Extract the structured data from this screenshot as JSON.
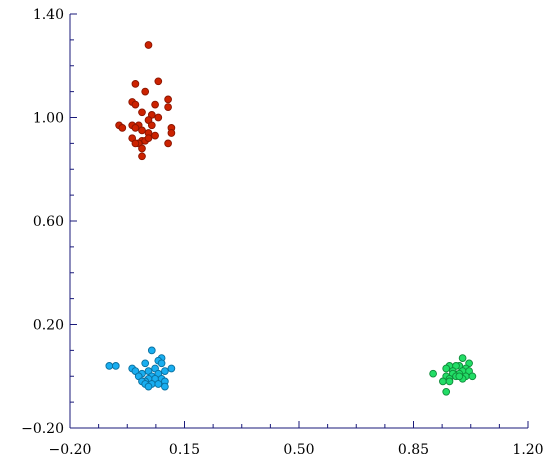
{
  "chart_data": {
    "type": "scatter",
    "title": "",
    "xlabel": "",
    "ylabel": "",
    "xlim": [
      -0.2,
      1.2
    ],
    "ylim": [
      -0.2,
      1.4
    ],
    "x_ticks": [
      -0.2,
      0.15,
      0.5,
      0.85,
      1.2
    ],
    "x_tick_labels": [
      "−0.20",
      "0.15",
      "0.50",
      "0.85",
      "1.20"
    ],
    "y_ticks": [
      -0.2,
      0.2,
      0.6,
      1.0,
      1.4
    ],
    "y_tick_labels": [
      "−0.20",
      "0.20",
      "0.60",
      "1.00",
      "1.40"
    ],
    "grid": false,
    "series": [
      {
        "color": "#cc2200",
        "stroke": "#8a1500",
        "points": [
          [
            0.04,
            1.28
          ],
          [
            0.0,
            1.13
          ],
          [
            0.07,
            1.14
          ],
          [
            -0.01,
            1.06
          ],
          [
            0.0,
            1.05
          ],
          [
            0.03,
            1.1
          ],
          [
            0.1,
            1.07
          ],
          [
            0.06,
            1.05
          ],
          [
            0.1,
            1.04
          ],
          [
            0.02,
            1.02
          ],
          [
            0.05,
            1.01
          ],
          [
            0.07,
            1.0
          ],
          [
            0.04,
            0.99
          ],
          [
            -0.05,
            0.97
          ],
          [
            -0.04,
            0.96
          ],
          [
            -0.01,
            0.97
          ],
          [
            0.01,
            0.97
          ],
          [
            0.0,
            0.96
          ],
          [
            0.02,
            0.95
          ],
          [
            0.05,
            0.97
          ],
          [
            0.11,
            0.96
          ],
          [
            0.04,
            0.94
          ],
          [
            0.11,
            0.94
          ],
          [
            0.06,
            0.93
          ],
          [
            -0.01,
            0.92
          ],
          [
            0.02,
            0.91
          ],
          [
            0.03,
            0.91
          ],
          [
            0.04,
            0.92
          ],
          [
            0.01,
            0.9
          ],
          [
            0.0,
            0.9
          ],
          [
            0.1,
            0.9
          ],
          [
            0.02,
            0.88
          ],
          [
            0.02,
            0.85
          ]
        ]
      },
      {
        "color": "#19aef0",
        "stroke": "#0a6f9e",
        "points": [
          [
            0.05,
            0.1
          ],
          [
            -0.08,
            0.04
          ],
          [
            -0.06,
            0.04
          ],
          [
            0.03,
            0.05
          ],
          [
            0.08,
            0.07
          ],
          [
            0.07,
            0.06
          ],
          [
            0.08,
            0.05
          ],
          [
            0.06,
            0.03
          ],
          [
            -0.01,
            0.03
          ],
          [
            0.0,
            0.02
          ],
          [
            0.04,
            0.02
          ],
          [
            0.09,
            0.02
          ],
          [
            0.11,
            0.03
          ],
          [
            0.02,
            0.01
          ],
          [
            0.05,
            0.0
          ],
          [
            0.07,
            0.01
          ],
          [
            0.01,
            0.0
          ],
          [
            0.06,
            -0.01
          ],
          [
            0.04,
            -0.01
          ],
          [
            0.08,
            -0.01
          ],
          [
            0.03,
            -0.02
          ],
          [
            0.09,
            -0.02
          ],
          [
            0.02,
            -0.02
          ],
          [
            0.05,
            -0.03
          ],
          [
            0.03,
            -0.03
          ],
          [
            0.07,
            -0.03
          ],
          [
            0.09,
            -0.04
          ],
          [
            0.04,
            -0.04
          ]
        ]
      },
      {
        "color": "#22dd66",
        "stroke": "#0f8a3a",
        "points": [
          [
            1.0,
            0.07
          ],
          [
            1.02,
            0.05
          ],
          [
            0.99,
            0.04
          ],
          [
            0.96,
            0.04
          ],
          [
            0.98,
            0.04
          ],
          [
            1.01,
            0.03
          ],
          [
            0.95,
            0.03
          ],
          [
            0.97,
            0.02
          ],
          [
            1.0,
            0.02
          ],
          [
            1.02,
            0.02
          ],
          [
            0.97,
            0.01
          ],
          [
            0.99,
            0.01
          ],
          [
            0.91,
            0.01
          ],
          [
            1.01,
            0.0
          ],
          [
            0.95,
            0.0
          ],
          [
            1.03,
            0.0
          ],
          [
            0.98,
            0.0
          ],
          [
            0.96,
            -0.01
          ],
          [
            1.0,
            -0.01
          ],
          [
            0.99,
            0.0
          ],
          [
            0.94,
            -0.02
          ],
          [
            0.96,
            -0.02
          ],
          [
            0.95,
            -0.06
          ]
        ]
      }
    ]
  }
}
